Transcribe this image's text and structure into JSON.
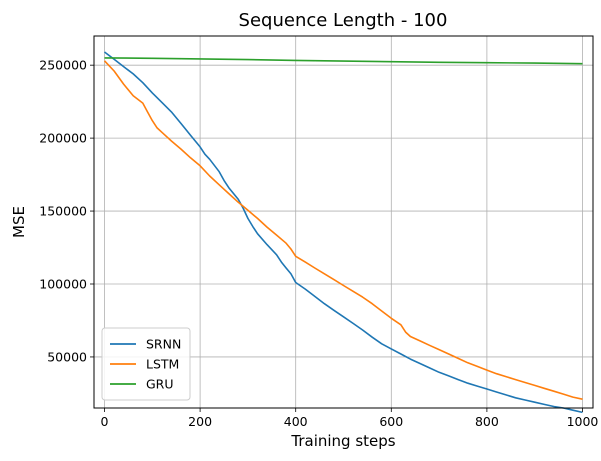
{
  "chart_data": {
    "type": "line",
    "title": "Sequence Length - 100",
    "xlabel": "Training steps",
    "ylabel": "MSE",
    "xlim": [
      -22,
      1022
    ],
    "ylim": [
      15000,
      270000
    ],
    "xticks": [
      0,
      200,
      400,
      600,
      800,
      1000
    ],
    "yticks": [
      50000,
      100000,
      150000,
      200000,
      250000
    ],
    "xtick_labels": [
      "0",
      "200",
      "400",
      "600",
      "800",
      "1000"
    ],
    "ytick_labels": [
      "50000",
      "100000",
      "150000",
      "200000",
      "250000"
    ],
    "grid": true,
    "legend_position": "lower-left",
    "series": [
      {
        "name": "SRNN",
        "color": "#1f77b4",
        "x": [
          0,
          20,
          40,
          60,
          80,
          100,
          120,
          140,
          160,
          180,
          200,
          210,
          220,
          240,
          250,
          260,
          280,
          290,
          300,
          310,
          320,
          340,
          360,
          370,
          380,
          390,
          400,
          420,
          440,
          460,
          480,
          500,
          520,
          540,
          560,
          580,
          600,
          620,
          640,
          660,
          680,
          700,
          720,
          740,
          760,
          780,
          800,
          820,
          840,
          860,
          880,
          900,
          920,
          940,
          960,
          980,
          1000
        ],
        "y": [
          259000,
          254000,
          249000,
          244000,
          238000,
          231000,
          224500,
          218000,
          210000,
          202000,
          194000,
          189000,
          185500,
          177000,
          171000,
          166000,
          158000,
          152000,
          145000,
          139500,
          134500,
          127000,
          120000,
          115000,
          111000,
          107000,
          101000,
          96500,
          91500,
          86500,
          82000,
          77500,
          73000,
          68500,
          63500,
          59000,
          55500,
          52000,
          48500,
          45500,
          42500,
          39500,
          37000,
          34500,
          32000,
          30000,
          28000,
          26000,
          24000,
          22000,
          20500,
          19000,
          17500,
          16000,
          15000,
          13500,
          12000
        ]
      },
      {
        "name": "LSTM",
        "color": "#ff7f0e",
        "x": [
          0,
          20,
          40,
          60,
          80,
          90,
          100,
          110,
          120,
          140,
          160,
          180,
          200,
          220,
          240,
          260,
          280,
          300,
          320,
          340,
          360,
          380,
          390,
          400,
          420,
          440,
          460,
          480,
          500,
          520,
          540,
          560,
          580,
          600,
          620,
          630,
          640,
          660,
          680,
          700,
          720,
          740,
          760,
          780,
          800,
          820,
          840,
          860,
          880,
          900,
          920,
          940,
          960,
          980,
          1000
        ],
        "y": [
          253000,
          246000,
          237000,
          229000,
          224000,
          218000,
          212000,
          207000,
          204000,
          198000,
          192500,
          186500,
          181000,
          174000,
          168000,
          162000,
          156000,
          150500,
          145000,
          139000,
          133500,
          128000,
          124000,
          119000,
          115000,
          111000,
          107000,
          103000,
          99000,
          95000,
          91000,
          86500,
          81500,
          76500,
          72000,
          67000,
          64000,
          61000,
          58000,
          55000,
          52000,
          49000,
          46000,
          43500,
          41000,
          38500,
          36500,
          34500,
          32500,
          30500,
          28500,
          26500,
          24500,
          22500,
          21000
        ]
      },
      {
        "name": "GRU",
        "color": "#2ca02c",
        "x": [
          0,
          100,
          200,
          300,
          400,
          500,
          600,
          700,
          800,
          900,
          1000
        ],
        "y": [
          255000,
          254700,
          254300,
          253800,
          253300,
          252800,
          252400,
          252000,
          251700,
          251400,
          251000
        ]
      }
    ]
  }
}
